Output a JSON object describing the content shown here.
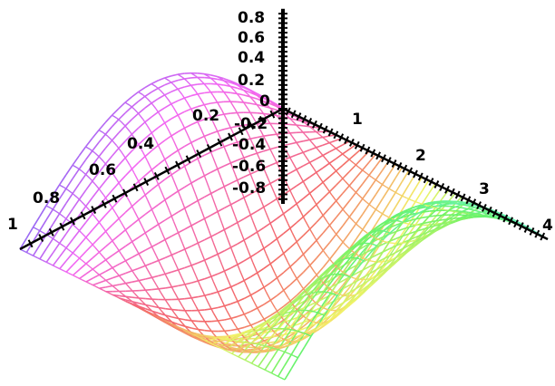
{
  "chart_data": {
    "type": "surface3d",
    "title": "",
    "style": "wireframe",
    "colors": "rainbow",
    "x_axis": {
      "range": [
        0,
        1
      ],
      "tick_labels": [
        "1",
        "0.8",
        "0.6",
        "0.4",
        "0.2"
      ]
    },
    "y_axis": {
      "range": [
        0,
        4
      ],
      "tick_labels": [
        "1",
        "2",
        "3",
        "4"
      ]
    },
    "z_axis": {
      "range": [
        -1,
        1
      ],
      "tick_labels": [
        "0.8",
        "0.6",
        "0.4",
        "0.2",
        "0",
        "-0.2",
        "-0.4",
        "-0.6",
        "-0.8"
      ]
    },
    "surface": {
      "function": "sin(pi*x)*cos(pi*y/2)",
      "x_samples": 21,
      "y_samples": 41
    }
  }
}
